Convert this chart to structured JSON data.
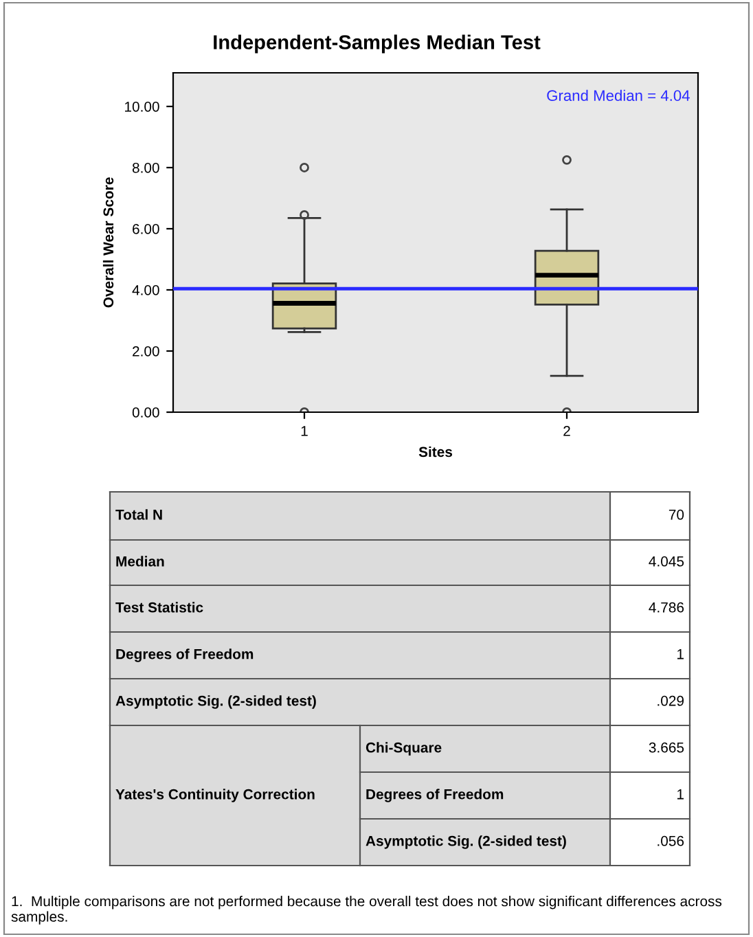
{
  "chart_data": {
    "type": "box",
    "title": "Independent-Samples Median Test",
    "xlabel": "Sites",
    "ylabel": "Overall Wear Score",
    "categories": [
      "1",
      "2"
    ],
    "color": "#d4cd98",
    "boxes": [
      {
        "low": 2.62,
        "q1": 2.74,
        "median": 3.56,
        "q3": 4.21,
        "high": 6.35,
        "outliers": [
          8.0,
          6.45,
          0.0
        ]
      },
      {
        "low": 1.19,
        "q1": 3.52,
        "median": 4.48,
        "q3": 5.28,
        "high": 6.63,
        "outliers": [
          8.25,
          0.0
        ]
      }
    ],
    "ylim": [
      0,
      11.1
    ],
    "yticks": [
      {
        "value": 0,
        "label": "0.00"
      },
      {
        "value": 2,
        "label": "2.00"
      },
      {
        "value": 4,
        "label": "4.00"
      },
      {
        "value": 6,
        "label": "6.00"
      },
      {
        "value": 8,
        "label": "8.00"
      },
      {
        "value": 10,
        "label": "10.00"
      }
    ],
    "grid": false,
    "ref_lines": [
      {
        "axis": "y",
        "value": 4.04,
        "label": "Grand Median = 4.04",
        "color": "#2b2bff"
      }
    ],
    "annotations": [
      "Total N",
      "70",
      "Median",
      "4.045",
      "Test Statistic",
      "4.786",
      "Degrees of Freedom",
      "1",
      "Asymptotic Sig. (2-sided test)",
      ".029",
      "Yates's Continuity Correction",
      "Chi-Square",
      "3.665",
      "Degrees of Freedom",
      "1",
      "Asymptotic Sig. (2-sided test)",
      ".056",
      "1.  Multiple comparisons are not performed because the overall test does not show significant differences across samples."
    ]
  }
}
